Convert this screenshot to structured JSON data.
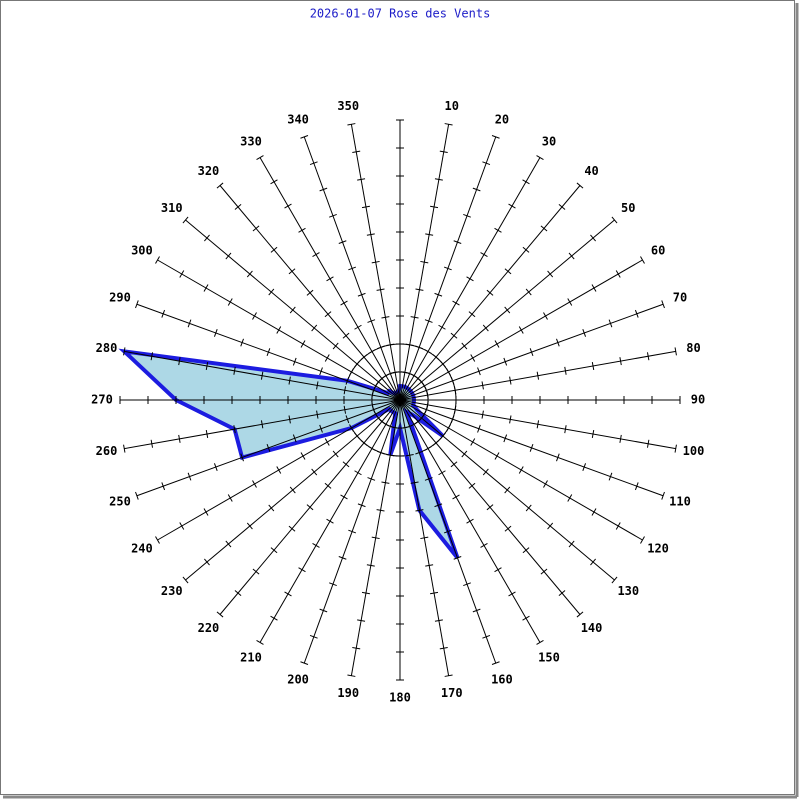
{
  "chart_data": {
    "type": "polar-area",
    "title": "2026-01-07 Rose des Vents",
    "categories": [
      null,
      "10",
      "20",
      "30",
      "40",
      "50",
      "60",
      "70",
      "80",
      "90",
      "100",
      "110",
      "120",
      "130",
      "140",
      "150",
      "160",
      "170",
      "180",
      "190",
      "200",
      "210",
      "220",
      "230",
      "240",
      "250",
      "260",
      "270",
      "280",
      "290",
      "300",
      "310",
      "320",
      "330",
      "340",
      "350"
    ],
    "values": [
      0.5,
      0.5,
      0.5,
      0.5,
      0.5,
      0.5,
      0.5,
      0.5,
      0.5,
      0.5,
      0.5,
      0.5,
      0.7,
      2,
      0.7,
      0.5,
      6,
      4,
      1,
      2,
      0.5,
      0.5,
      0.5,
      0.5,
      2,
      6,
      6,
      8,
      10,
      2,
      0.5,
      0.5,
      0.3,
      0.3,
      0.3,
      0.3
    ],
    "rlim": [
      0,
      10
    ],
    "rticks": [
      1,
      2,
      3,
      4,
      5,
      6,
      7,
      8,
      9,
      10
    ],
    "rings": [
      1,
      2
    ],
    "color": "#1c1ce0",
    "fill": "#add8e6",
    "title_color": "#1c1cc8"
  }
}
